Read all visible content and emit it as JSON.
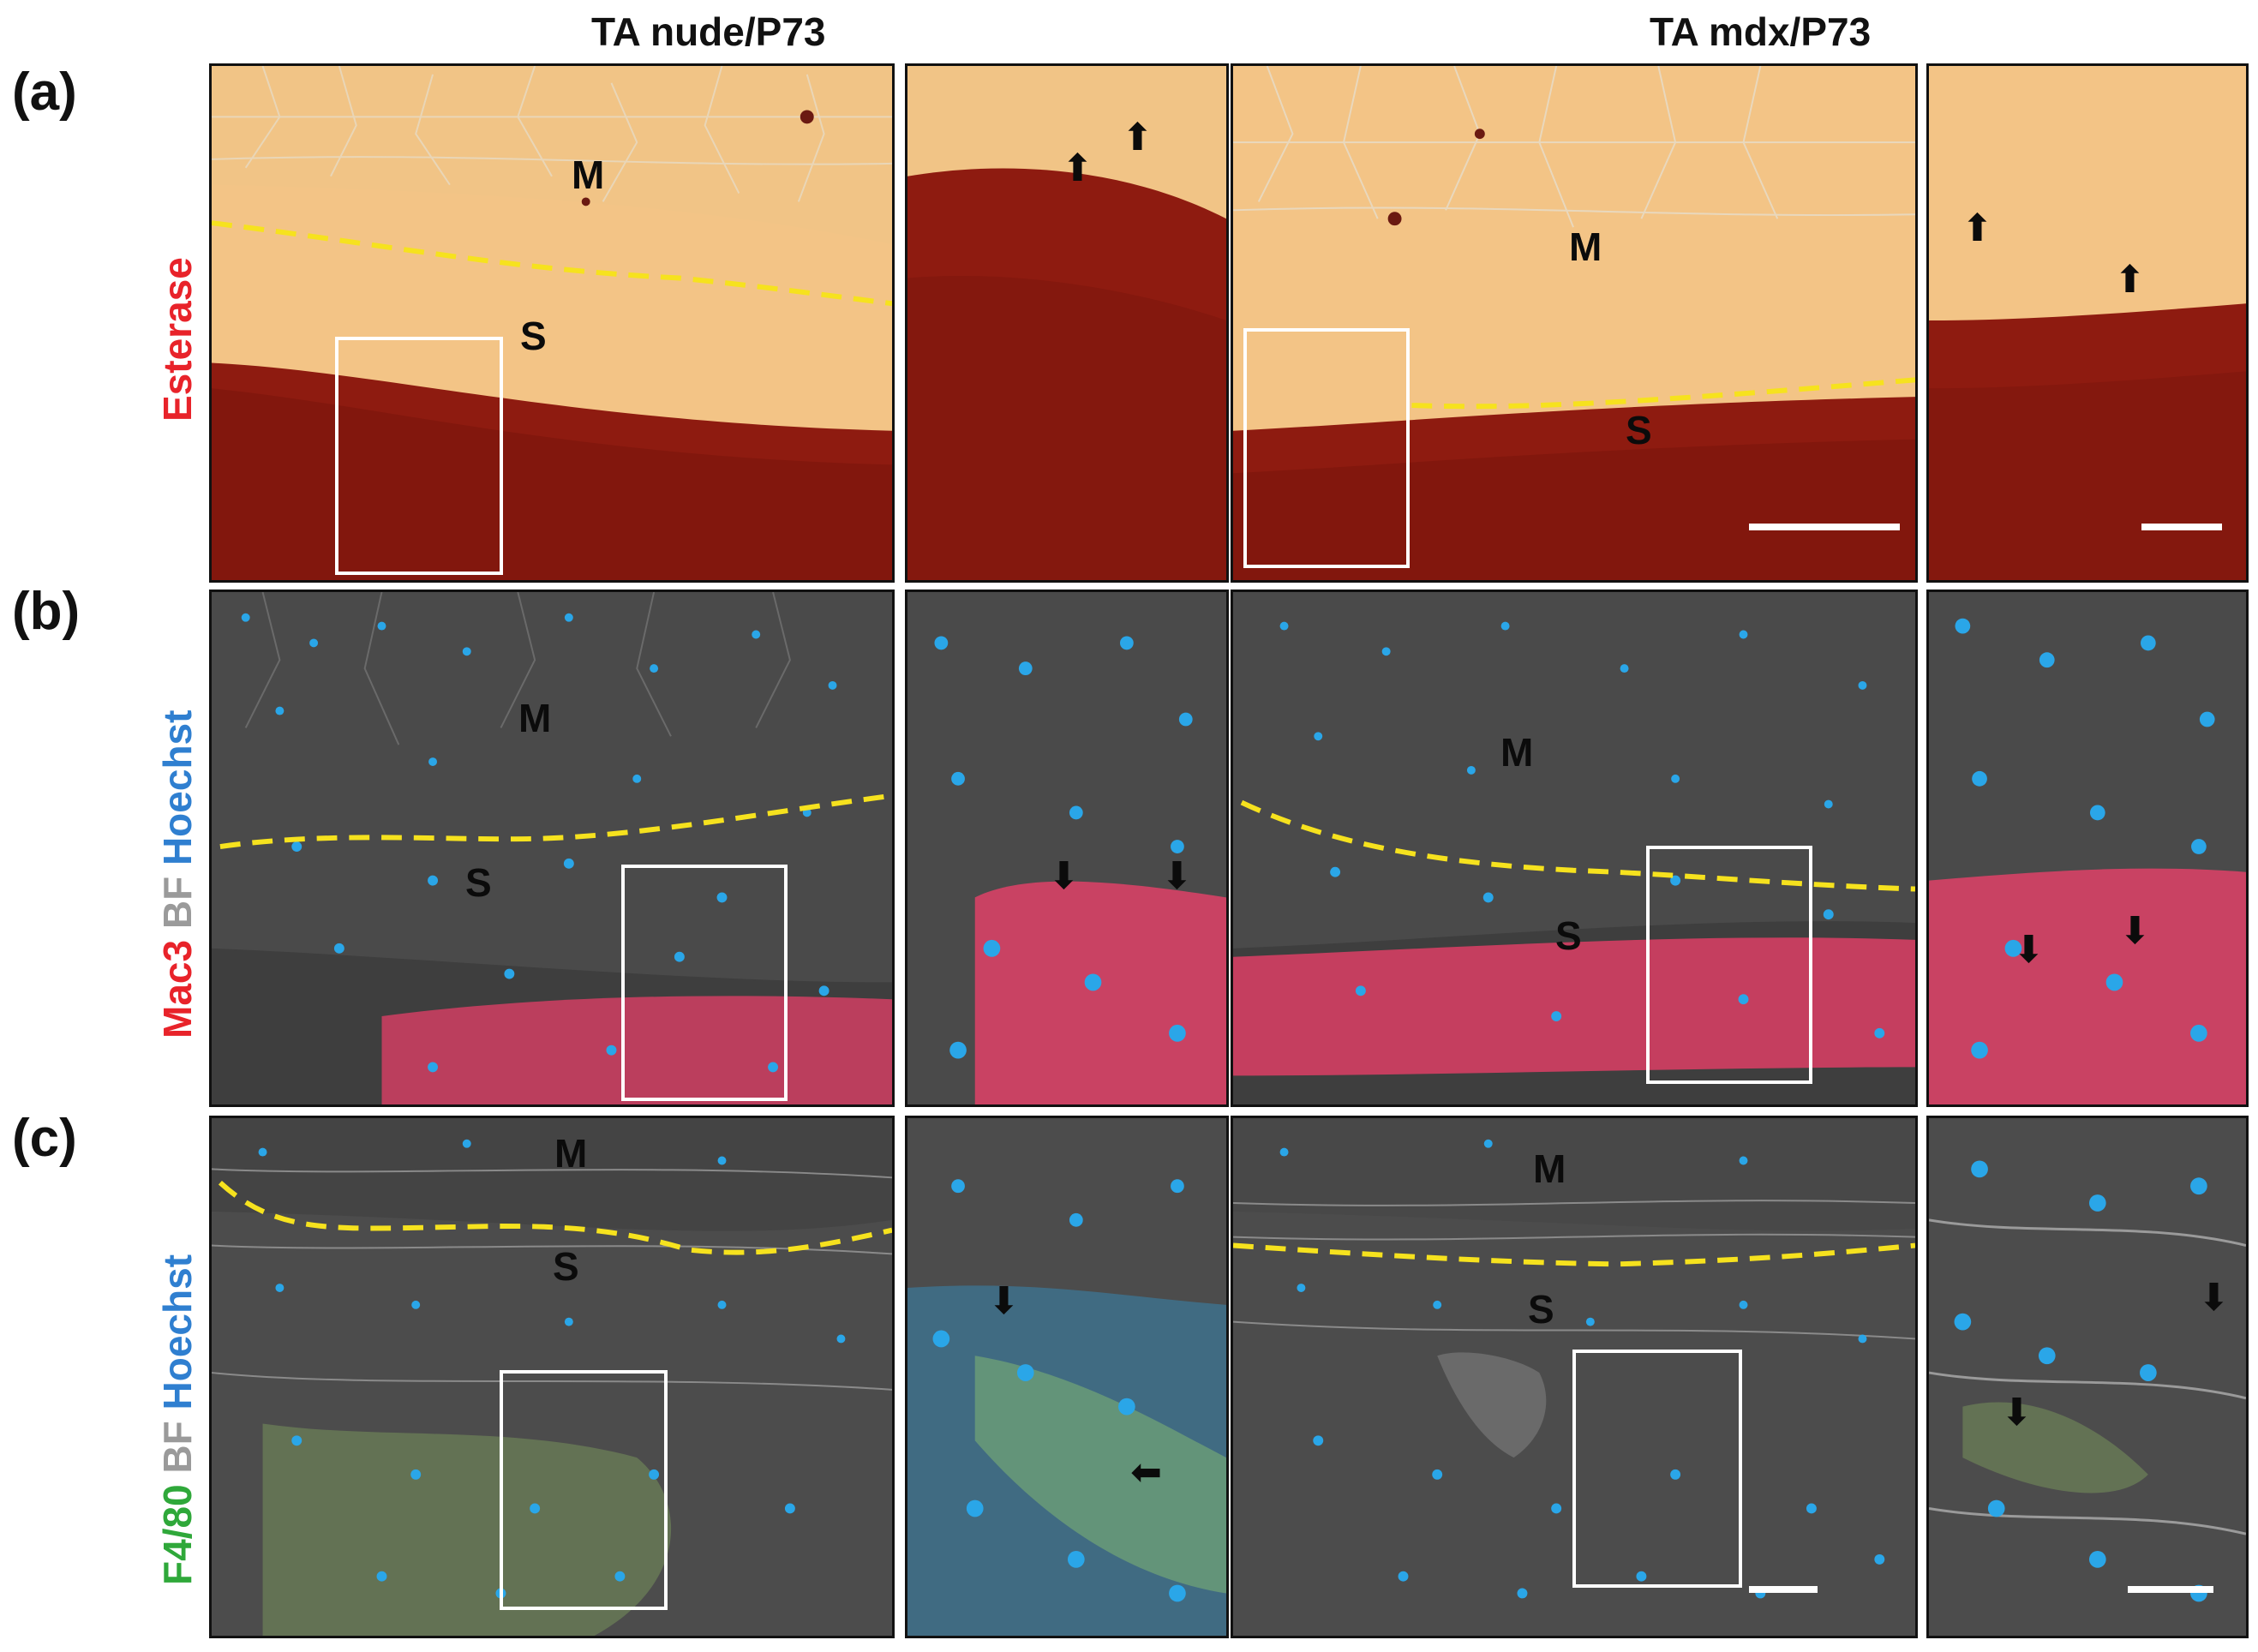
{
  "figure": {
    "column_titles": [
      "TA nude/P73",
      "TA mdx/P73"
    ],
    "rows": [
      {
        "label": "(a)",
        "stain": [
          {
            "text": "Esterase",
            "color": "#e8232a"
          }
        ]
      },
      {
        "label": "(b)",
        "stain": [
          {
            "text": "Mac3",
            "color": "#e8232a"
          },
          {
            "text": " BF",
            "color": "#9a9a9a"
          },
          {
            "text": " Hoechst",
            "color": "#2f7fd0"
          }
        ]
      },
      {
        "label": "(c)",
        "stain": [
          {
            "text": "F4/80",
            "color": "#2fa83a"
          },
          {
            "text": " BF",
            "color": "#9a9a9a"
          },
          {
            "text": " Hoechst",
            "color": "#2f7fd0"
          }
        ]
      }
    ],
    "tissue_labels": {
      "muscle": "M",
      "scar": "S"
    },
    "arrow_glyph": "⬆",
    "colors": {
      "esterase_light": "#f3c486",
      "esterase_dark": "#8e1b10",
      "boundary_dashed": "#f6e21e",
      "fluor_background": "#4a4a4a",
      "mac3_signal": "#ff3f6e",
      "f480_signal": "#a6e36b",
      "hoechst_signal": "#2aa6e8"
    },
    "icons": [
      "up-arrow-icon",
      "down-arrow-icon",
      "left-arrow-icon"
    ]
  }
}
